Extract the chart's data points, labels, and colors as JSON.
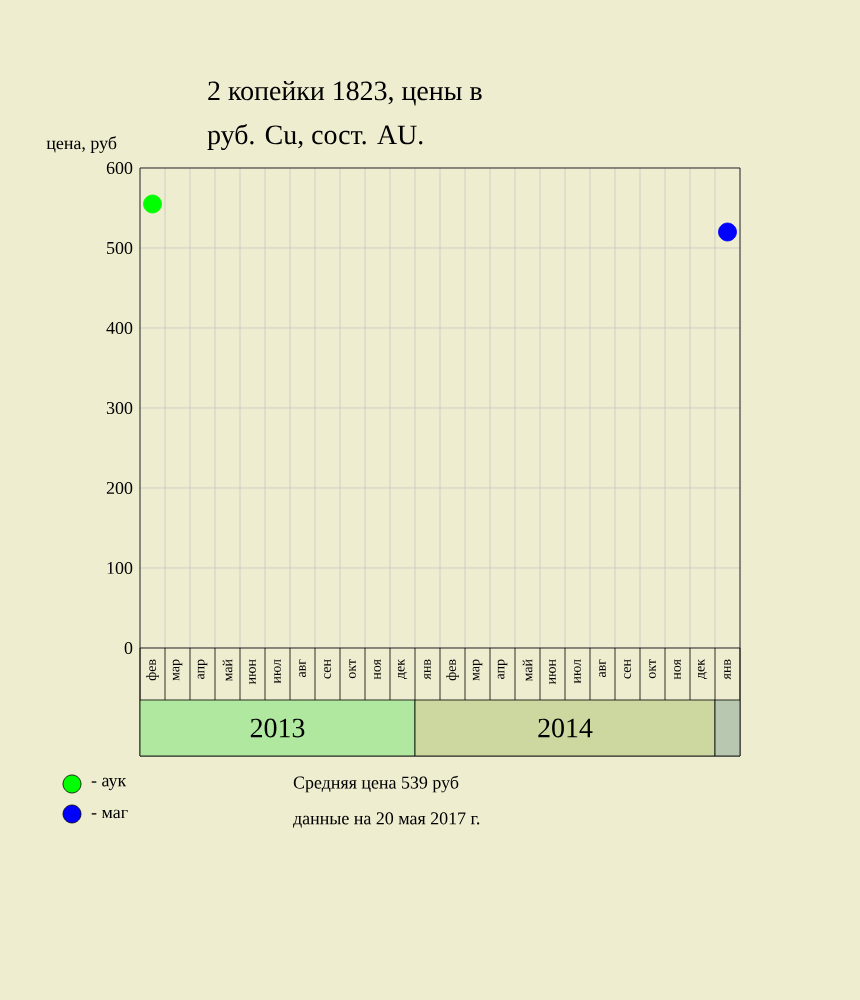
{
  "chart_data": {
    "type": "scatter",
    "title": "2 копейки 1823, цены в",
    "subtitle": "руб. Cu, сост. AU.",
    "ylabel": "цена, руб",
    "categories": [
      "фев",
      "мар",
      "апр",
      "май",
      "июн",
      "июл",
      "авг",
      "сен",
      "окт",
      "ноя",
      "дек",
      "янв",
      "фев",
      "мар",
      "апр",
      "май",
      "июн",
      "июл",
      "авг",
      "сен",
      "окт",
      "ноя",
      "дек",
      "янв"
    ],
    "ylim": [
      0,
      600
    ],
    "yticks": [
      0,
      100,
      200,
      300,
      400,
      500,
      600
    ],
    "grid": true,
    "marker": "circle",
    "legend": "bottom left",
    "series": [
      {
        "name": "- аук",
        "color": "#00ff00",
        "values": [
          555,
          null,
          null,
          null,
          null,
          null,
          null,
          null,
          null,
          null,
          null,
          null,
          null,
          null,
          null,
          null,
          null,
          null,
          null,
          null,
          null,
          null,
          null,
          null
        ]
      },
      {
        "name": "- маг",
        "color": "#0000ff",
        "values": [
          null,
          null,
          null,
          null,
          null,
          null,
          null,
          null,
          null,
          null,
          null,
          null,
          null,
          null,
          null,
          null,
          null,
          null,
          null,
          null,
          null,
          null,
          null,
          520
        ]
      }
    ],
    "annotations": [
      "2013",
      "2014",
      "Средняя цена 539 руб",
      "данные на 20 мая 2017 г."
    ]
  }
}
